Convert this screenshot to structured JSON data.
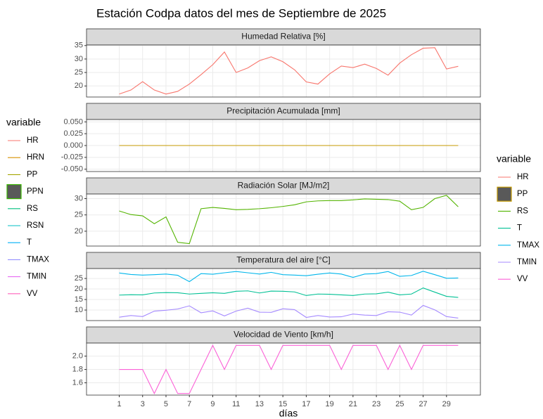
{
  "title": "Estación Codpa datos del mes de Septiembre de 2025",
  "xlabel": "días",
  "legend_left": {
    "title": "variable",
    "items": [
      {
        "name": "HR",
        "color": "#F8766D",
        "key": "line"
      },
      {
        "name": "HRN",
        "color": "#D89000",
        "key": "line"
      },
      {
        "name": "PP",
        "color": "#A3A500",
        "key": "line"
      },
      {
        "name": "PPN",
        "color": "#39B600",
        "key": "box",
        "fill": "#595959"
      },
      {
        "name": "RS",
        "color": "#00BF7D",
        "key": "line"
      },
      {
        "name": "RSN",
        "color": "#00BFC4",
        "key": "line"
      },
      {
        "name": "T",
        "color": "#00B0F6",
        "key": "line"
      },
      {
        "name": "TMAX",
        "color": "#9590FF",
        "key": "line"
      },
      {
        "name": "TMIN",
        "color": "#E76BF3",
        "key": "line"
      },
      {
        "name": "VV",
        "color": "#FF62BC",
        "key": "line"
      }
    ]
  },
  "legend_right": {
    "title": "variable",
    "items": [
      {
        "name": "HR",
        "color": "#F8766D",
        "key": "line"
      },
      {
        "name": "PP",
        "color": "#C49A00",
        "key": "box",
        "fill": "#595959"
      },
      {
        "name": "RS",
        "color": "#53B400",
        "key": "line"
      },
      {
        "name": "T",
        "color": "#00C094",
        "key": "line"
      },
      {
        "name": "TMAX",
        "color": "#00B6EB",
        "key": "line"
      },
      {
        "name": "TMIN",
        "color": "#A58AFF",
        "key": "line"
      },
      {
        "name": "VV",
        "color": "#FB61D7",
        "key": "line"
      }
    ]
  },
  "chart_data": [
    {
      "type": "line",
      "title": "Humedad Relativa [%]",
      "x": [
        1,
        2,
        3,
        4,
        5,
        6,
        7,
        8,
        9,
        10,
        11,
        12,
        13,
        14,
        15,
        16,
        17,
        18,
        19,
        20,
        21,
        22,
        23,
        24,
        25,
        26,
        27,
        28,
        29,
        30
      ],
      "xlim": [
        -1.8,
        31.9
      ],
      "xticks": [
        1,
        3,
        5,
        7,
        9,
        11,
        13,
        15,
        17,
        19,
        21,
        23,
        25,
        27,
        29
      ],
      "ylim": [
        15.9,
        35.2
      ],
      "yticks": [
        20,
        25,
        30,
        35
      ],
      "grid": true,
      "series": [
        {
          "name": "HR",
          "color": "#F8766D",
          "values": [
            17.0,
            18.5,
            21.6,
            18.5,
            17.0,
            18.0,
            20.7,
            24.2,
            27.9,
            32.6,
            25.0,
            26.7,
            29.4,
            30.8,
            29.0,
            26.0,
            21.5,
            20.7,
            24.5,
            27.4,
            26.8,
            28.1,
            26.5,
            24.0,
            28.5,
            31.6,
            34.0,
            34.2,
            26.3,
            27.3
          ]
        }
      ]
    },
    {
      "type": "line",
      "title": "Precipitación Acumulada [mm]",
      "x": [
        1,
        2,
        3,
        4,
        5,
        6,
        7,
        8,
        9,
        10,
        11,
        12,
        13,
        14,
        15,
        16,
        17,
        18,
        19,
        20,
        21,
        22,
        23,
        24,
        25,
        26,
        27,
        28,
        29,
        30
      ],
      "xlim": [
        -1.8,
        31.9
      ],
      "xticks": [
        1,
        3,
        5,
        7,
        9,
        11,
        13,
        15,
        17,
        19,
        21,
        23,
        25,
        27,
        29
      ],
      "ylim": [
        -0.055,
        0.055
      ],
      "yticks": [
        {
          "value": -0.05,
          "label": "-0.050"
        },
        {
          "value": -0.025,
          "label": "-0.025"
        },
        {
          "value": 0,
          "label": "0.000"
        },
        {
          "value": 0.025,
          "label": "0.025"
        },
        {
          "value": 0.05,
          "label": "0.050"
        }
      ],
      "grid": true,
      "series": [
        {
          "name": "PP",
          "color": "#C49A00",
          "values": [
            0,
            0,
            0,
            0,
            0,
            0,
            0,
            0,
            0,
            0,
            0,
            0,
            0,
            0,
            0,
            0,
            0,
            0,
            0,
            0,
            0,
            0,
            0,
            0,
            0,
            0,
            0,
            0,
            0,
            0
          ]
        }
      ]
    },
    {
      "type": "line",
      "title": "Radiación Solar [MJ/m2]",
      "x": [
        1,
        2,
        3,
        4,
        5,
        6,
        7,
        8,
        9,
        10,
        11,
        12,
        13,
        14,
        15,
        16,
        17,
        18,
        19,
        20,
        21,
        22,
        23,
        24,
        25,
        26,
        27,
        28,
        29,
        30
      ],
      "xlim": [
        -1.8,
        31.9
      ],
      "xticks": [
        1,
        3,
        5,
        7,
        9,
        11,
        13,
        15,
        17,
        19,
        21,
        23,
        25,
        27,
        29
      ],
      "ylim": [
        15.45,
        31.4
      ],
      "yticks": [
        20,
        25,
        30
      ],
      "grid": true,
      "series": [
        {
          "name": "RS",
          "color": "#53B400",
          "values": [
            26.2,
            25.1,
            24.7,
            22.3,
            24.4,
            16.6,
            16.2,
            26.9,
            27.3,
            27.0,
            26.6,
            26.7,
            26.9,
            27.2,
            27.6,
            28.1,
            29.0,
            29.3,
            29.4,
            29.4,
            29.6,
            29.9,
            29.8,
            29.7,
            29.2,
            26.6,
            27.3,
            30.0,
            31.0,
            27.5
          ]
        }
      ]
    },
    {
      "type": "line",
      "title": "Temperatura del aire [°C]",
      "x": [
        1,
        2,
        3,
        4,
        5,
        6,
        7,
        8,
        9,
        10,
        11,
        12,
        13,
        14,
        15,
        16,
        17,
        18,
        19,
        20,
        21,
        22,
        23,
        24,
        25,
        26,
        27,
        28,
        29,
        30
      ],
      "xlim": [
        -1.8,
        31.9
      ],
      "xticks": [
        1,
        3,
        5,
        7,
        9,
        11,
        13,
        15,
        17,
        19,
        21,
        23,
        25,
        27,
        29
      ],
      "ylim": [
        5.0,
        29.7
      ],
      "yticks": [
        10,
        15,
        20,
        25
      ],
      "grid": true,
      "series": [
        {
          "name": "T",
          "color": "#00C094",
          "values": [
            17.1,
            17.3,
            17.2,
            18.1,
            18.3,
            18.2,
            17.6,
            17.9,
            18.2,
            17.9,
            18.9,
            19.1,
            18.1,
            19.0,
            18.9,
            18.6,
            16.9,
            17.6,
            17.5,
            17.2,
            16.9,
            17.6,
            17.7,
            18.5,
            17.2,
            17.6,
            20.5,
            18.5,
            16.5,
            16.0
          ]
        },
        {
          "name": "TMAX",
          "color": "#00B6EB",
          "values": [
            27.6,
            26.9,
            26.6,
            26.8,
            27.1,
            26.5,
            23.5,
            27.3,
            27.0,
            27.7,
            28.3,
            27.7,
            27.1,
            27.9,
            26.8,
            26.6,
            26.3,
            27.0,
            27.6,
            27.1,
            25.5,
            27.1,
            27.3,
            28.3,
            26.0,
            26.4,
            28.4,
            26.8,
            25.1,
            25.2
          ]
        },
        {
          "name": "TMIN",
          "color": "#A58AFF",
          "values": [
            6.6,
            7.4,
            6.9,
            9.5,
            9.9,
            10.5,
            12.0,
            8.7,
            9.6,
            7.2,
            9.5,
            10.9,
            9.0,
            8.9,
            10.6,
            10.2,
            6.5,
            7.4,
            6.7,
            6.8,
            8.1,
            7.6,
            7.4,
            9.2,
            9.0,
            7.6,
            12.2,
            10.1,
            6.9,
            6.2
          ]
        }
      ]
    },
    {
      "type": "line",
      "title": "Velocidad de Viento [km/h]",
      "x": [
        1,
        2,
        3,
        4,
        5,
        6,
        7,
        8,
        9,
        10,
        11,
        12,
        13,
        14,
        15,
        16,
        17,
        18,
        19,
        20,
        21,
        22,
        23,
        24,
        25,
        26,
        27,
        28,
        29,
        30
      ],
      "xlim": [
        -1.8,
        31.9
      ],
      "xticks": [
        1,
        3,
        5,
        7,
        9,
        11,
        13,
        15,
        17,
        19,
        21,
        23,
        25,
        27,
        29
      ],
      "ylim": [
        1.416,
        2.195
      ],
      "yticks": [
        1.6,
        1.8,
        {
          "value": 2.0,
          "label": "2.0"
        }
      ],
      "grid": true,
      "series": [
        {
          "name": "VV",
          "color": "#FB61D7",
          "values": [
            1.8,
            1.8,
            1.8,
            1.44,
            1.8,
            1.44,
            1.44,
            1.8,
            2.16,
            1.8,
            2.16,
            2.16,
            2.16,
            1.8,
            2.16,
            2.16,
            2.16,
            2.16,
            2.16,
            1.8,
            2.16,
            2.16,
            2.16,
            1.8,
            2.16,
            1.8,
            2.16,
            2.16,
            2.16,
            2.16
          ]
        }
      ]
    }
  ]
}
